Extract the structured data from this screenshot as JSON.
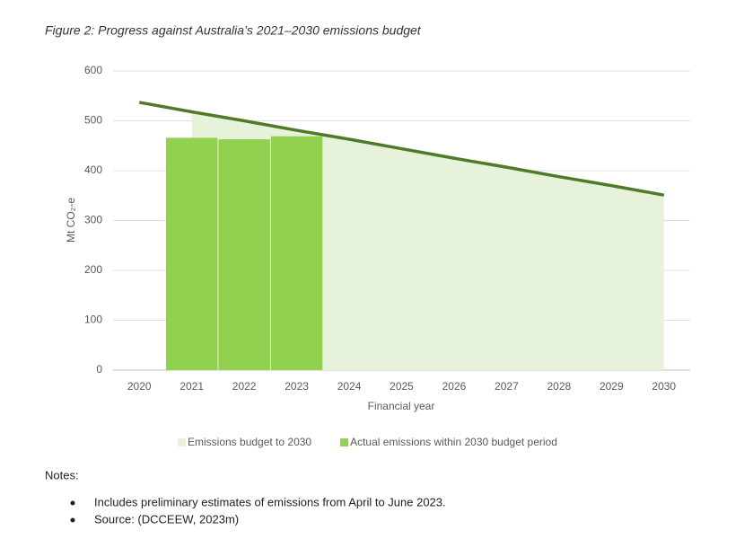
{
  "chart_data": {
    "type": "bar",
    "title": "Figure 2: Progress against Australia’s 2021–2030 emissions budget",
    "ylabel": "Mt CO₂-e",
    "xlabel": "Financial year",
    "categories": [
      "2020",
      "2021",
      "2022",
      "2023",
      "2024",
      "2025",
      "2026",
      "2027",
      "2028",
      "2029",
      "2030"
    ],
    "series": [
      {
        "name": "Emissions budget to 2030",
        "type": "line",
        "color": "#4f7a28",
        "fill": "#e6f2da",
        "fill_from": "2021",
        "values": [
          537,
          518,
          500,
          481,
          463,
          444,
          425,
          407,
          388,
          370,
          351
        ]
      },
      {
        "name": "Actual emissions within 2030 budget period",
        "type": "bar",
        "color": "#92d050",
        "values": [
          null,
          466,
          463,
          469,
          null,
          null,
          null,
          null,
          null,
          null,
          null
        ]
      }
    ],
    "ylim": [
      0,
      600
    ],
    "yticks": [
      0,
      100,
      200,
      300,
      400,
      500,
      600
    ],
    "grid": true
  },
  "notes": {
    "heading": "Notes:",
    "items": [
      "Includes preliminary estimates of emissions from April to June 2023.",
      "Source: (DCCEEW, 2023m)"
    ]
  }
}
